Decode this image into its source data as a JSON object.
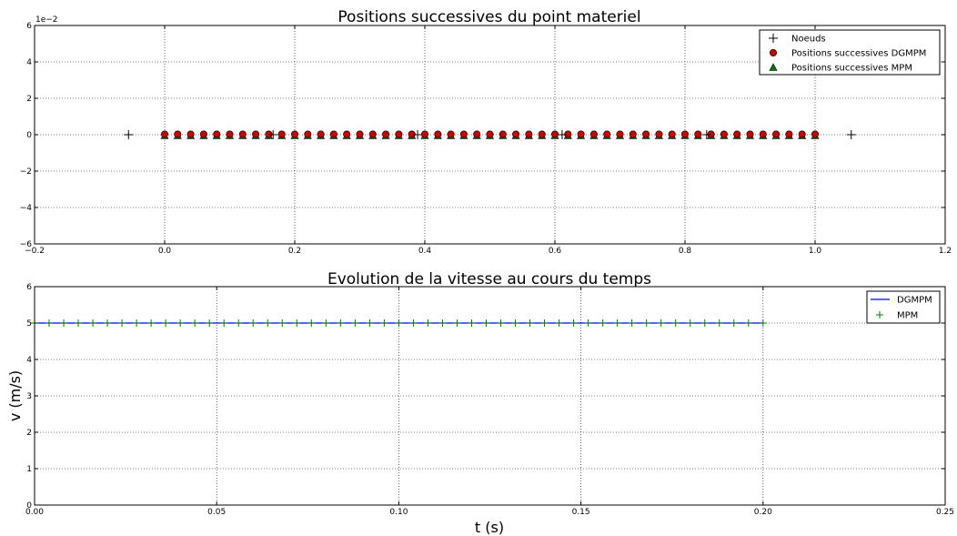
{
  "chart_data": [
    {
      "type": "scatter",
      "title": "Positions successives du point materiel",
      "xlabel": "",
      "ylabel": "",
      "xlim": [
        -0.2,
        1.2
      ],
      "ylim": [
        -0.06,
        0.06
      ],
      "y_scale_label": "1e−2",
      "x_ticks": [
        -0.2,
        0.0,
        0.2,
        0.4,
        0.6,
        0.8,
        1.0,
        1.2
      ],
      "x_tick_labels": [
        "−0.2",
        "0.0",
        "0.2",
        "0.4",
        "0.6",
        "0.8",
        "1.0",
        "1.2"
      ],
      "y_ticks": [
        -0.06,
        -0.04,
        -0.02,
        0.0,
        0.02,
        0.04,
        0.06
      ],
      "y_tick_labels": [
        "−6",
        "−4",
        "−2",
        "0",
        "2",
        "4",
        "6"
      ],
      "grid": true,
      "legend_position": "top-right",
      "series": [
        {
          "name": "Noeuds",
          "marker": "plus",
          "color": "#000000",
          "x": [
            -0.0556,
            0.1667,
            0.3889,
            0.6111,
            0.8333,
            1.0556
          ],
          "y": [
            0,
            0,
            0,
            0,
            0,
            0
          ]
        },
        {
          "name": "Positions successives DGMPM",
          "marker": "circle",
          "color": "#cc0000",
          "x": [
            0.0,
            0.02,
            0.04,
            0.06,
            0.08,
            0.1,
            0.12,
            0.14,
            0.16,
            0.18,
            0.2,
            0.22,
            0.24,
            0.26,
            0.28,
            0.3,
            0.32,
            0.34,
            0.36,
            0.38,
            0.4,
            0.42,
            0.44,
            0.46,
            0.48,
            0.5,
            0.52,
            0.54,
            0.56,
            0.58,
            0.6,
            0.62,
            0.64,
            0.66,
            0.68,
            0.7,
            0.72,
            0.74,
            0.76,
            0.78,
            0.8,
            0.82,
            0.84,
            0.86,
            0.88,
            0.9,
            0.92,
            0.94,
            0.96,
            0.98,
            1.0
          ]
        },
        {
          "name": "Positions successives MPM",
          "marker": "triangle",
          "color": "#007a00",
          "x": [
            0.0,
            0.02,
            0.04,
            0.06,
            0.08,
            0.1,
            0.12,
            0.14,
            0.16,
            0.18,
            0.2,
            0.22,
            0.24,
            0.26,
            0.28,
            0.3,
            0.32,
            0.34,
            0.36,
            0.38,
            0.4,
            0.42,
            0.44,
            0.46,
            0.48,
            0.5,
            0.52,
            0.54,
            0.56,
            0.58,
            0.6,
            0.62,
            0.64,
            0.66,
            0.68,
            0.7,
            0.72,
            0.74,
            0.76,
            0.78,
            0.8,
            0.82,
            0.84,
            0.86,
            0.88,
            0.9,
            0.92,
            0.94,
            0.96,
            0.98,
            1.0
          ]
        }
      ]
    },
    {
      "type": "line",
      "title": "Evolution de la vitesse au cours du temps",
      "xlabel": "t (s)",
      "ylabel": "v (m/s)",
      "xlim": [
        0.0,
        0.25
      ],
      "ylim": [
        0,
        6
      ],
      "x_ticks": [
        0.0,
        0.05,
        0.1,
        0.15,
        0.2,
        0.25
      ],
      "x_tick_labels": [
        "0.00",
        "0.05",
        "0.10",
        "0.15",
        "0.20",
        "0.25"
      ],
      "y_ticks": [
        0,
        1,
        2,
        3,
        4,
        5,
        6
      ],
      "y_tick_labels": [
        "0",
        "1",
        "2",
        "3",
        "4",
        "5",
        "6"
      ],
      "grid": true,
      "legend_position": "top-right",
      "series": [
        {
          "name": "DGMPM",
          "style": "line",
          "color": "#0000ff",
          "x": [
            0.0,
            0.2
          ],
          "y": [
            5.0,
            5.0
          ]
        },
        {
          "name": "MPM",
          "style": "plus",
          "color": "#008000",
          "x": [
            0.0,
            0.004,
            0.008,
            0.012,
            0.016,
            0.02,
            0.024,
            0.028,
            0.032,
            0.036,
            0.04,
            0.044,
            0.048,
            0.052,
            0.056,
            0.06,
            0.064,
            0.068,
            0.072,
            0.076,
            0.08,
            0.084,
            0.088,
            0.092,
            0.096,
            0.1,
            0.104,
            0.108,
            0.112,
            0.116,
            0.12,
            0.124,
            0.128,
            0.132,
            0.136,
            0.14,
            0.144,
            0.148,
            0.152,
            0.156,
            0.16,
            0.164,
            0.168,
            0.172,
            0.176,
            0.18,
            0.184,
            0.188,
            0.192,
            0.196,
            0.2
          ],
          "y_constant": 5.0
        }
      ]
    }
  ]
}
